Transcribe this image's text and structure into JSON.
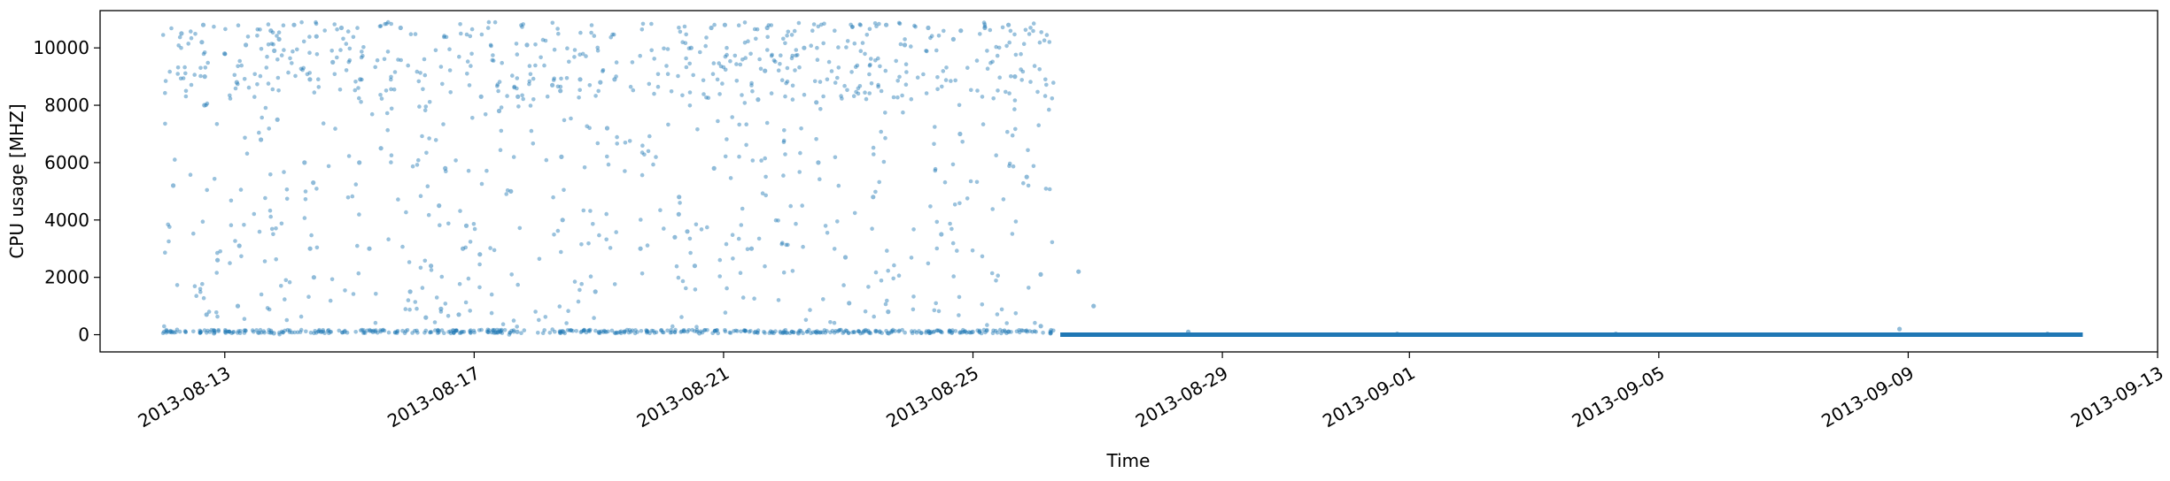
{
  "chart_data": {
    "type": "scatter",
    "xlabel": "Time",
    "ylabel": "CPU usage [MHZ]",
    "x_range": [
      "2013-08-11",
      "2013-09-13"
    ],
    "ylim": [
      -600,
      11300
    ],
    "x_ticks": [
      "2013-08-13",
      "2013-08-17",
      "2013-08-21",
      "2013-08-25",
      "2013-08-29",
      "2013-09-01",
      "2013-09-05",
      "2013-09-09",
      "2013-09-13"
    ],
    "y_ticks": [
      0,
      2000,
      4000,
      6000,
      8000,
      10000
    ],
    "marker_color": "#1f77b4",
    "grid": false,
    "data_start": "2013-08-12",
    "data_end": "2013-09-11",
    "points": [
      [
        "2013-08-12",
        10800
      ],
      [
        "2013-08-12",
        10500
      ],
      [
        "2013-08-12",
        10200
      ],
      [
        "2013-08-12",
        9800
      ],
      [
        "2013-08-12",
        9000
      ],
      [
        "2013-08-12",
        8000
      ],
      [
        "2013-08-12",
        5200
      ],
      [
        "2013-08-12",
        2600
      ],
      [
        "2013-08-12",
        700
      ],
      [
        "2013-08-12",
        50
      ],
      [
        "2013-08-13",
        10600
      ],
      [
        "2013-08-13",
        10100
      ],
      [
        "2013-08-13",
        9900
      ],
      [
        "2013-08-13",
        8800
      ],
      [
        "2013-08-13",
        6800
      ],
      [
        "2013-08-13",
        3100
      ],
      [
        "2013-08-13",
        1000
      ],
      [
        "2013-08-13",
        50
      ],
      [
        "2013-08-13",
        10300
      ],
      [
        "2013-08-13",
        7500
      ],
      [
        "2013-08-14",
        10800
      ],
      [
        "2013-08-14",
        10400
      ],
      [
        "2013-08-14",
        9500
      ],
      [
        "2013-08-14",
        8900
      ],
      [
        "2013-08-14",
        6000
      ],
      [
        "2013-08-14",
        3000
      ],
      [
        "2013-08-14",
        100
      ],
      [
        "2013-08-14",
        10700
      ],
      [
        "2013-08-14",
        5300
      ],
      [
        "2013-08-14",
        2000
      ],
      [
        "2013-08-15",
        10700
      ],
      [
        "2013-08-15",
        8900
      ],
      [
        "2013-08-15",
        6000
      ],
      [
        "2013-08-15",
        3000
      ],
      [
        "2013-08-15",
        100
      ],
      [
        "2013-08-15",
        6500
      ],
      [
        "2013-08-15",
        1500
      ],
      [
        "2013-08-16",
        900
      ],
      [
        "2013-08-16",
        700
      ],
      [
        "2013-08-16",
        600
      ],
      [
        "2013-08-16",
        4500
      ],
      [
        "2013-08-16",
        3800
      ],
      [
        "2013-08-16",
        3000
      ],
      [
        "2013-08-16",
        2400
      ],
      [
        "2013-08-16",
        5800
      ],
      [
        "2013-08-17",
        10100
      ],
      [
        "2013-08-17",
        8300
      ],
      [
        "2013-08-17",
        8300
      ],
      [
        "2013-08-17",
        5000
      ],
      [
        "2013-08-17",
        2800
      ],
      [
        "2013-08-17",
        100
      ],
      [
        "2013-08-17",
        7800
      ],
      [
        "2013-08-18",
        8900
      ],
      [
        "2013-08-18",
        8700
      ],
      [
        "2013-08-18",
        8500
      ],
      [
        "2013-08-18",
        6200
      ],
      [
        "2013-08-18",
        4000
      ],
      [
        "2013-08-18",
        1500
      ],
      [
        "2013-08-18",
        100
      ],
      [
        "2013-08-19",
        8800
      ],
      [
        "2013-08-19",
        8900
      ],
      [
        "2013-08-19",
        7200
      ],
      [
        "2013-08-19",
        3000
      ],
      [
        "2013-08-19",
        100
      ],
      [
        "2013-08-20",
        4800
      ],
      [
        "2013-08-20",
        4200
      ],
      [
        "2013-08-20",
        3600
      ],
      [
        "2013-08-20",
        3400
      ],
      [
        "2013-08-20",
        10700
      ],
      [
        "2013-08-20",
        10000
      ],
      [
        "2013-08-20",
        2400
      ],
      [
        "2013-08-20",
        5800
      ],
      [
        "2013-08-20",
        50
      ],
      [
        "2013-08-21",
        10700
      ],
      [
        "2013-08-21",
        10800
      ],
      [
        "2013-08-21",
        8200
      ],
      [
        "2013-08-21",
        3000
      ],
      [
        "2013-08-21",
        100
      ],
      [
        "2013-08-21",
        9200
      ],
      [
        "2013-08-22",
        10000
      ],
      [
        "2013-08-22",
        8100
      ],
      [
        "2013-08-22",
        2700
      ],
      [
        "2013-08-22",
        50
      ],
      [
        "2013-08-22",
        6000
      ],
      [
        "2013-08-23",
        10100
      ],
      [
        "2013-08-23",
        10800
      ],
      [
        "2013-08-23",
        1100
      ],
      [
        "2013-08-23",
        800
      ],
      [
        "2013-08-23",
        50
      ],
      [
        "2013-08-23",
        4800
      ],
      [
        "2013-08-24",
        10600
      ],
      [
        "2013-08-24",
        10300
      ],
      [
        "2013-08-24",
        10700
      ],
      [
        "2013-08-24",
        7000
      ],
      [
        "2013-08-24",
        100
      ],
      [
        "2013-08-24",
        3500
      ],
      [
        "2013-08-25",
        10700
      ],
      [
        "2013-08-25",
        10800
      ],
      [
        "2013-08-25",
        9000
      ],
      [
        "2013-08-25",
        5500
      ],
      [
        "2013-08-25",
        100
      ],
      [
        "2013-08-26",
        2200
      ],
      [
        "2013-08-26",
        2100
      ],
      [
        "2013-08-26",
        1000
      ],
      [
        "2013-08-26",
        300
      ],
      [
        "2013-08-26",
        50
      ],
      [
        "2013-08-28",
        100
      ],
      [
        "2013-08-31",
        30
      ],
      [
        "2013-09-04",
        30
      ],
      [
        "2013-09-08",
        200
      ],
      [
        "2013-09-11",
        30
      ]
    ]
  }
}
